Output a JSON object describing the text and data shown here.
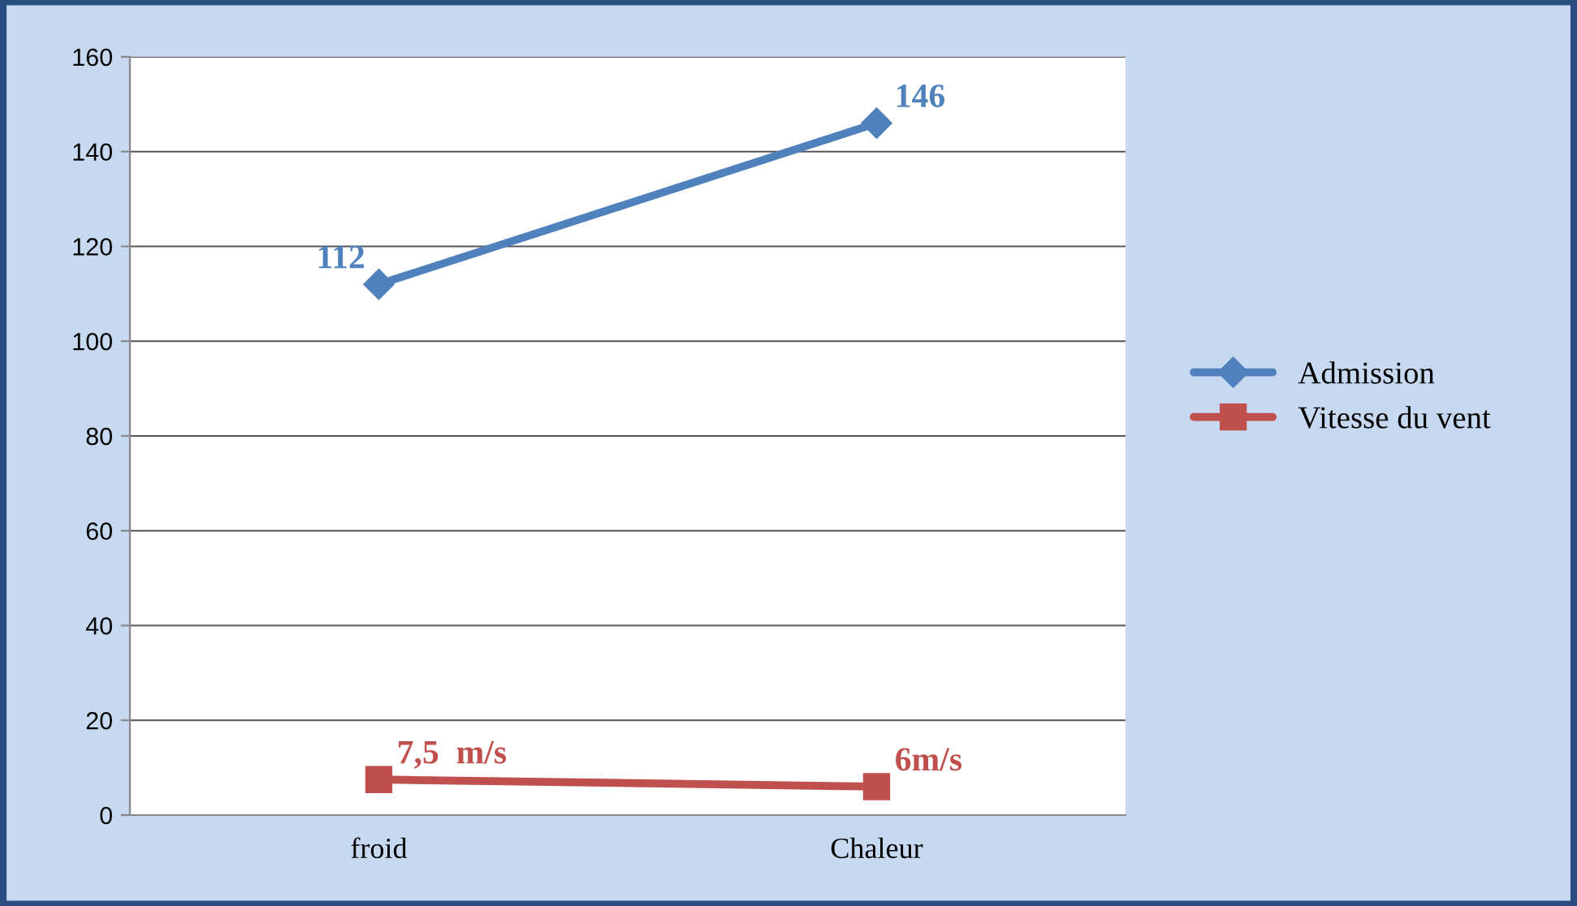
{
  "chart_data": {
    "type": "line",
    "categories": [
      "froid",
      "Chaleur"
    ],
    "series": [
      {
        "name": "Admission",
        "color": "#4f81bd",
        "values": [
          112,
          146
        ],
        "marker": "diamond",
        "value_labels": [
          "112",
          "146"
        ]
      },
      {
        "name": "Vitesse du vent",
        "color": "#c0504d",
        "values": [
          7.5,
          6
        ],
        "marker": "square",
        "value_labels": [
          "7,5  m/s",
          "6m/s"
        ]
      }
    ],
    "ylim": [
      0,
      160
    ],
    "yticks": [
      0,
      20,
      40,
      60,
      80,
      100,
      120,
      140,
      160
    ],
    "grid": "y",
    "legend": "right",
    "line_style": "solid"
  }
}
